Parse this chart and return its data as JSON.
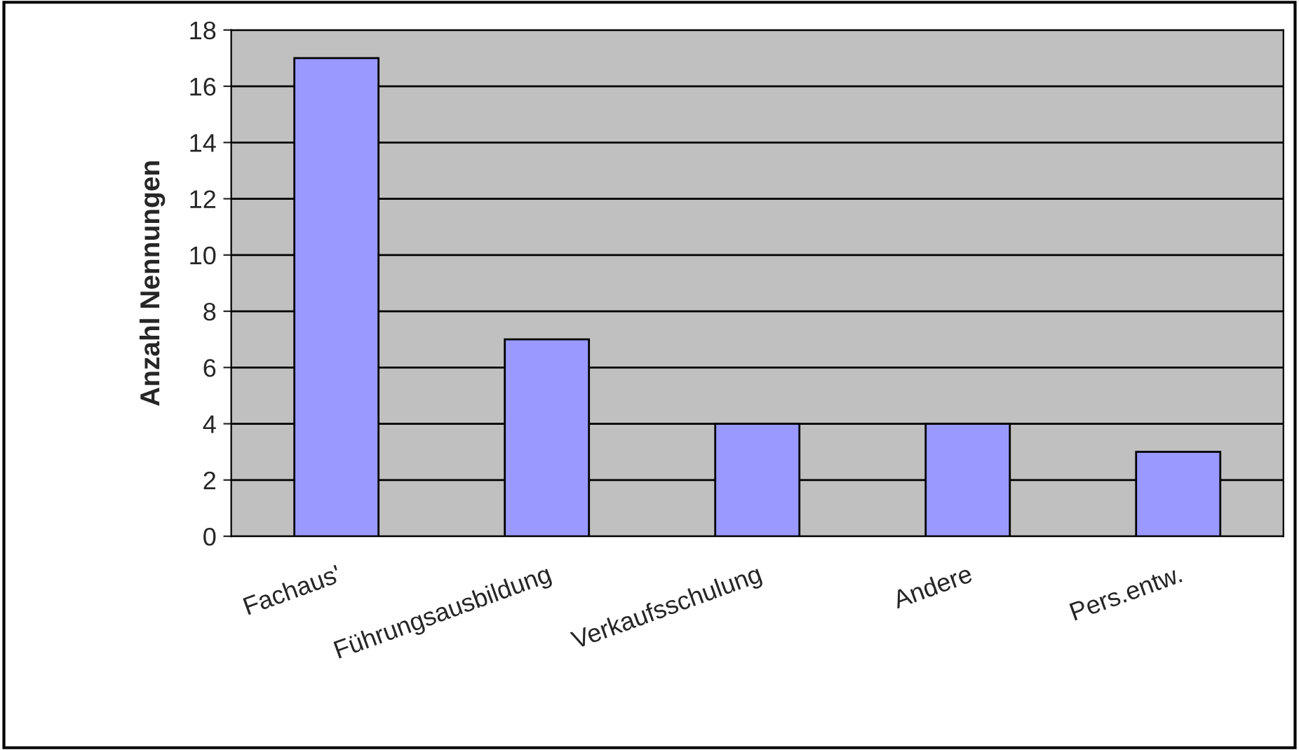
{
  "chart_data": {
    "type": "bar",
    "ylabel": "Anzahl Nennungen",
    "categories": [
      "Fachaus'",
      "Führungsausbildung",
      "Verkaufsschulung",
      "Andere",
      "Pers.entw."
    ],
    "values": [
      17,
      7,
      4,
      4,
      3
    ],
    "color": "#9999ff",
    "ylim": [
      0,
      18
    ],
    "yticks": [
      0,
      2,
      4,
      6,
      8,
      10,
      12,
      14,
      16,
      18
    ],
    "grid": "y",
    "legend": false
  }
}
